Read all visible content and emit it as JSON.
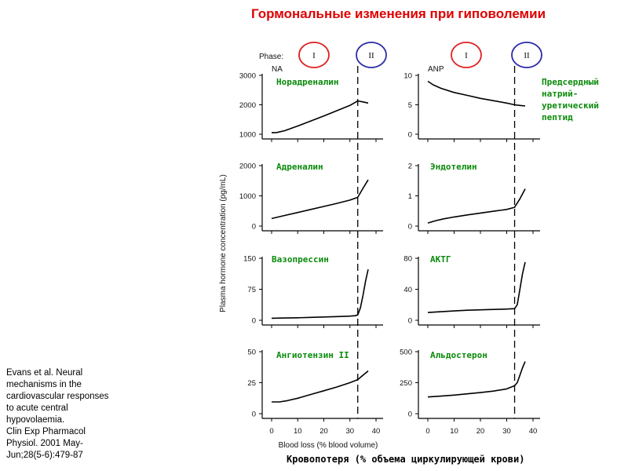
{
  "title": "Гормональные изменения при гиповолемии",
  "citation_lines": [
    "Evans et al. Neural",
    "mechanisms in the",
    "cardiovascular responses",
    "to acute central",
    "hypovolaemia.",
    "Clin Exp Pharmacol",
    "Physiol. 2001 May-",
    "Jun;28(5-6):479-87"
  ],
  "footer_label": "Кровопотеря  (% объема циркулирующей крови)",
  "phase": {
    "label": "Phase:",
    "phase1": "I",
    "phase2": "II"
  },
  "colors": {
    "title": "#e00000",
    "russian_labels": "#0a8a0a",
    "phase1_circle": "#e02020",
    "phase2_circle": "#2a2aa8"
  },
  "chart_data": {
    "type": "line",
    "xlabel": "Blood loss (% blood volume)",
    "ylabel": "Plasma hormone concentration (pg/mL)",
    "x_ticks": [
      0,
      10,
      20,
      30,
      40
    ],
    "xlim": [
      -3,
      40
    ],
    "phase_boundary_x": 33,
    "panels": [
      {
        "id": "na",
        "abbr": "NA",
        "label": "Норадреналин",
        "ylim": [
          1000,
          3000
        ],
        "yticks": [
          1000,
          2000,
          3000
        ],
        "x": [
          0,
          2,
          5,
          10,
          15,
          20,
          25,
          30,
          33,
          35,
          37
        ],
        "y": [
          1050,
          1060,
          1120,
          1280,
          1450,
          1620,
          1800,
          1980,
          2130,
          2100,
          2060
        ]
      },
      {
        "id": "anp",
        "abbr": "ANP",
        "label": "Предсердный натрий-уретический пептид",
        "ylim": [
          0,
          10
        ],
        "yticks": [
          0,
          5,
          10
        ],
        "x": [
          0,
          2,
          5,
          10,
          15,
          20,
          25,
          30,
          33,
          35,
          37
        ],
        "y": [
          9.0,
          8.4,
          7.8,
          7.1,
          6.6,
          6.1,
          5.7,
          5.3,
          5.0,
          4.9,
          4.8
        ]
      },
      {
        "id": "adr",
        "abbr": "",
        "label": "Адреналин",
        "ylim": [
          0,
          2000
        ],
        "yticks": [
          0,
          1000,
          2000
        ],
        "x": [
          0,
          5,
          10,
          15,
          20,
          25,
          30,
          33,
          35,
          37
        ],
        "y": [
          250,
          350,
          450,
          550,
          650,
          750,
          860,
          950,
          1250,
          1530
        ]
      },
      {
        "id": "endo",
        "abbr": "",
        "label": "Эндотелин",
        "ylim": [
          0,
          2
        ],
        "yticks": [
          0,
          1,
          2
        ],
        "x": [
          0,
          3,
          6,
          10,
          15,
          20,
          25,
          30,
          33,
          35,
          37
        ],
        "y": [
          0.1,
          0.18,
          0.24,
          0.3,
          0.37,
          0.43,
          0.49,
          0.55,
          0.62,
          0.9,
          1.23
        ]
      },
      {
        "id": "vaso",
        "abbr": "",
        "label": "Вазопрессин",
        "ylim": [
          0,
          150
        ],
        "yticks": [
          0,
          75,
          150
        ],
        "x": [
          0,
          5,
          10,
          15,
          20,
          25,
          30,
          32,
          33,
          34,
          35,
          36,
          37
        ],
        "y": [
          5,
          5.5,
          6,
          7,
          8,
          9,
          10,
          11,
          13,
          30,
          60,
          95,
          123
        ]
      },
      {
        "id": "actg",
        "abbr": "",
        "label": "АКТГ",
        "ylim": [
          0,
          80
        ],
        "yticks": [
          0,
          40,
          80
        ],
        "x": [
          0,
          5,
          10,
          15,
          20,
          25,
          30,
          33,
          34,
          35,
          36,
          37
        ],
        "y": [
          10,
          11,
          12,
          13,
          13.5,
          14,
          14.5,
          15,
          20,
          40,
          60,
          75
        ]
      },
      {
        "id": "angio",
        "abbr": "",
        "label": "Ангиотензин II",
        "ylim": [
          0,
          50
        ],
        "yticks": [
          0,
          25,
          50
        ],
        "x": [
          0,
          3,
          6,
          10,
          15,
          20,
          25,
          30,
          33,
          35,
          37
        ],
        "y": [
          9.5,
          9.5,
          10.5,
          12.5,
          15.5,
          18.5,
          21.5,
          25,
          27.5,
          31,
          34.5
        ]
      },
      {
        "id": "aldo",
        "abbr": "",
        "label": "Альдостерон",
        "ylim": [
          0,
          500
        ],
        "yticks": [
          0,
          250,
          500
        ],
        "x": [
          0,
          5,
          10,
          15,
          20,
          25,
          30,
          33,
          34,
          35,
          36,
          37
        ],
        "y": [
          135,
          142,
          150,
          160,
          170,
          182,
          200,
          225,
          250,
          310,
          370,
          420
        ]
      }
    ]
  }
}
